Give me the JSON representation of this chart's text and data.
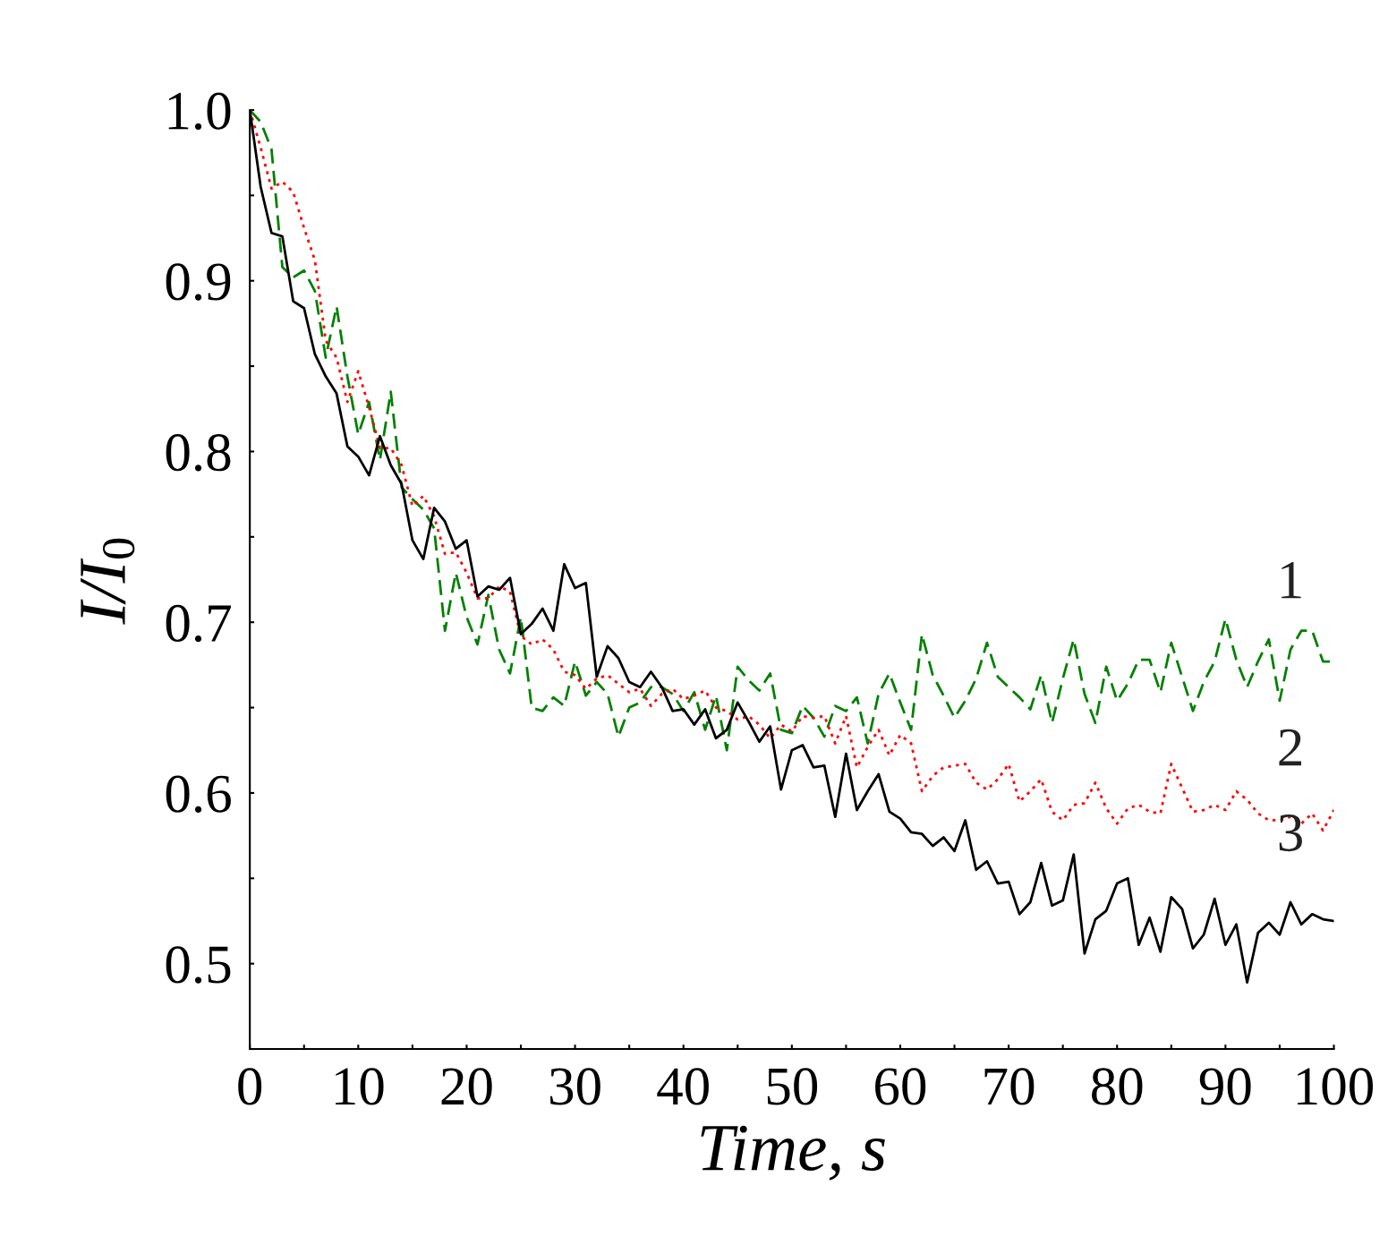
{
  "chart_data": {
    "type": "line",
    "xlabel": "Time, s",
    "ylabel": "I/I$_{0}$",
    "x": [
      0,
      1,
      2,
      3,
      4,
      5,
      6,
      7,
      8,
      9,
      10,
      11,
      12,
      13,
      14,
      15,
      16,
      17,
      18,
      19,
      20,
      21,
      22,
      23,
      24,
      25,
      26,
      27,
      28,
      29,
      30,
      31,
      32,
      33,
      34,
      35,
      36,
      37,
      38,
      39,
      40,
      41,
      42,
      43,
      44,
      45,
      46,
      47,
      48,
      49,
      50,
      51,
      52,
      53,
      54,
      55,
      56,
      57,
      58,
      59,
      60,
      61,
      62,
      63,
      64,
      65,
      66,
      67,
      68,
      69,
      70,
      71,
      72,
      73,
      74,
      75,
      76,
      77,
      78,
      79,
      80,
      81,
      82,
      83,
      84,
      85,
      86,
      87,
      88,
      89,
      90,
      91,
      92,
      93,
      94,
      95,
      96,
      97,
      98,
      99,
      100
    ],
    "series": [
      {
        "name": "1",
        "color": "#008000",
        "line_style": "dashed",
        "values": [
          1.0,
          0.993,
          0.977,
          0.908,
          0.902,
          0.906,
          0.894,
          0.855,
          0.885,
          0.844,
          0.81,
          0.829,
          0.795,
          0.835,
          0.779,
          0.772,
          0.766,
          0.755,
          0.695,
          0.729,
          0.703,
          0.687,
          0.716,
          0.684,
          0.67,
          0.703,
          0.65,
          0.648,
          0.656,
          0.651,
          0.677,
          0.657,
          0.665,
          0.658,
          0.633,
          0.65,
          0.653,
          0.662,
          0.662,
          0.658,
          0.648,
          0.659,
          0.637,
          0.657,
          0.625,
          0.674,
          0.666,
          0.66,
          0.67,
          0.637,
          0.635,
          0.651,
          0.644,
          0.633,
          0.651,
          0.648,
          0.656,
          0.629,
          0.658,
          0.67,
          0.653,
          0.637,
          0.693,
          0.669,
          0.657,
          0.644,
          0.654,
          0.667,
          0.688,
          0.668,
          0.662,
          0.656,
          0.649,
          0.669,
          0.641,
          0.667,
          0.69,
          0.658,
          0.641,
          0.674,
          0.654,
          0.664,
          0.678,
          0.678,
          0.659,
          0.688,
          0.668,
          0.648,
          0.665,
          0.677,
          0.702,
          0.678,
          0.662,
          0.677,
          0.69,
          0.654,
          0.684,
          0.695,
          0.695,
          0.677,
          0.677
        ]
      },
      {
        "name": "2",
        "color": "#ff0000",
        "line_style": "dotted",
        "values": [
          1.0,
          0.978,
          0.954,
          0.958,
          0.952,
          0.931,
          0.912,
          0.865,
          0.855,
          0.829,
          0.847,
          0.826,
          0.802,
          0.802,
          0.792,
          0.768,
          0.774,
          0.762,
          0.74,
          0.741,
          0.729,
          0.714,
          0.714,
          0.721,
          0.718,
          0.692,
          0.687,
          0.69,
          0.684,
          0.671,
          0.669,
          0.661,
          0.667,
          0.669,
          0.664,
          0.659,
          0.661,
          0.651,
          0.658,
          0.661,
          0.655,
          0.657,
          0.66,
          0.65,
          0.648,
          0.643,
          0.645,
          0.64,
          0.632,
          0.64,
          0.636,
          0.645,
          0.644,
          0.645,
          0.629,
          0.645,
          0.615,
          0.627,
          0.637,
          0.622,
          0.634,
          0.629,
          0.601,
          0.61,
          0.615,
          0.616,
          0.617,
          0.606,
          0.602,
          0.608,
          0.617,
          0.595,
          0.601,
          0.608,
          0.589,
          0.584,
          0.593,
          0.594,
          0.606,
          0.591,
          0.582,
          0.591,
          0.593,
          0.589,
          0.588,
          0.617,
          0.603,
          0.589,
          0.59,
          0.593,
          0.59,
          0.601,
          0.596,
          0.588,
          0.584,
          0.584,
          0.586,
          0.582,
          0.588,
          0.578,
          0.59
        ]
      },
      {
        "name": "3",
        "color": "#000000",
        "line_style": "solid",
        "values": [
          1.0,
          0.955,
          0.928,
          0.926,
          0.888,
          0.884,
          0.857,
          0.844,
          0.834,
          0.803,
          0.797,
          0.786,
          0.809,
          0.792,
          0.781,
          0.748,
          0.737,
          0.767,
          0.759,
          0.743,
          0.748,
          0.715,
          0.721,
          0.719,
          0.726,
          0.693,
          0.699,
          0.708,
          0.695,
          0.734,
          0.72,
          0.723,
          0.668,
          0.686,
          0.679,
          0.665,
          0.662,
          0.671,
          0.662,
          0.648,
          0.649,
          0.64,
          0.649,
          0.632,
          0.637,
          0.653,
          0.642,
          0.63,
          0.639,
          0.602,
          0.625,
          0.628,
          0.615,
          0.616,
          0.586,
          0.623,
          0.59,
          0.601,
          0.611,
          0.589,
          0.585,
          0.577,
          0.576,
          0.569,
          0.574,
          0.566,
          0.584,
          0.555,
          0.56,
          0.547,
          0.548,
          0.529,
          0.536,
          0.559,
          0.534,
          0.537,
          0.564,
          0.506,
          0.526,
          0.531,
          0.547,
          0.55,
          0.511,
          0.527,
          0.507,
          0.539,
          0.532,
          0.509,
          0.517,
          0.538,
          0.511,
          0.523,
          0.489,
          0.518,
          0.524,
          0.517,
          0.536,
          0.523,
          0.529,
          0.526,
          0.525
        ]
      }
    ],
    "xlim": [
      0,
      100
    ],
    "ylim": [
      0.45,
      1.0
    ],
    "xticks": [
      0,
      {
        "value": 5,
        "label": null
      },
      10,
      {
        "value": 15,
        "label": null
      },
      20,
      {
        "value": 25,
        "label": null
      },
      30,
      {
        "value": 35,
        "label": null
      },
      40,
      {
        "value": 45,
        "label": null
      },
      50,
      {
        "value": 55,
        "label": null
      },
      60,
      {
        "value": 65,
        "label": null
      },
      70,
      {
        "value": 75,
        "label": null
      },
      80,
      {
        "value": 85,
        "label": null
      },
      90,
      {
        "value": 95,
        "label": null
      },
      100
    ],
    "yticks": [
      {
        "value": 0.45,
        "label": null
      },
      {
        "value": 0.5,
        "label": "0.5"
      },
      {
        "value": 0.55,
        "label": null
      },
      {
        "value": 0.6,
        "label": "0.6"
      },
      {
        "value": 0.65,
        "label": null
      },
      {
        "value": 0.7,
        "label": "0.7"
      },
      {
        "value": 0.75,
        "label": null
      },
      {
        "value": 0.8,
        "label": "0.8"
      },
      {
        "value": 0.85,
        "label": null
      },
      {
        "value": 0.9,
        "label": "0.9"
      },
      {
        "value": 0.95,
        "label": null
      },
      {
        "value": 1.0,
        "label": "1.0"
      }
    ],
    "grid": false,
    "legend": false,
    "marker": "none"
  }
}
